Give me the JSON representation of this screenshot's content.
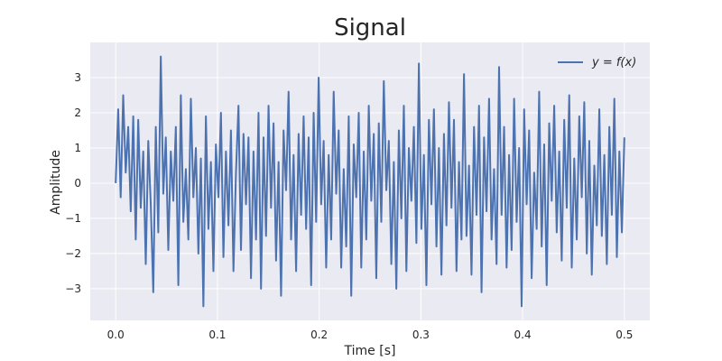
{
  "chart_data": {
    "type": "line",
    "title": "Signal",
    "xlabel": "Time [s]",
    "ylabel": "Amplitude",
    "xlim": [
      -0.025,
      0.525
    ],
    "ylim": [
      -3.9,
      4.0
    ],
    "x_ticks": [
      0.0,
      0.1,
      0.2,
      0.3,
      0.4,
      0.5
    ],
    "x_tick_labels": [
      "0.0",
      "0.1",
      "0.2",
      "0.3",
      "0.4",
      "0.5"
    ],
    "y_ticks": [
      -3,
      -2,
      -1,
      0,
      1,
      2,
      3
    ],
    "y_tick_labels": [
      "−3",
      "−2",
      "−1",
      "0",
      "1",
      "2",
      "3"
    ],
    "grid": true,
    "legend_position": "top-right",
    "series": [
      {
        "name": "y = f(x)",
        "color": "#4c72b0",
        "x_start": 0.0,
        "x_end": 0.5,
        "values": [
          0.0,
          2.1,
          -0.4,
          2.5,
          0.3,
          1.6,
          -0.8,
          1.9,
          -1.6,
          1.8,
          -0.7,
          0.9,
          -2.3,
          1.2,
          -0.6,
          -3.1,
          1.6,
          -1.4,
          3.6,
          -0.3,
          1.3,
          -1.9,
          0.9,
          -0.5,
          1.6,
          -2.9,
          2.5,
          -1.1,
          0.4,
          -1.6,
          2.4,
          -0.4,
          1.0,
          -2.0,
          0.7,
          -3.5,
          1.9,
          -1.3,
          0.6,
          -2.5,
          1.1,
          -0.4,
          2.0,
          -2.1,
          0.9,
          -1.2,
          1.5,
          -2.5,
          0.3,
          2.2,
          -1.9,
          1.4,
          -0.6,
          1.3,
          -2.7,
          0.9,
          -1.6,
          2.0,
          -3.0,
          1.3,
          -1.5,
          2.2,
          -0.7,
          1.7,
          -2.2,
          0.6,
          -3.2,
          1.5,
          -0.2,
          2.6,
          -1.6,
          0.8,
          -2.5,
          1.4,
          -0.9,
          1.9,
          -1.3,
          1.3,
          -2.9,
          2.0,
          -1.1,
          3.0,
          -0.6,
          1.2,
          -2.4,
          0.8,
          -1.6,
          2.6,
          -0.3,
          1.5,
          -2.4,
          0.4,
          -1.8,
          1.9,
          -3.2,
          1.1,
          -0.4,
          2.0,
          -2.4,
          0.9,
          -1.6,
          2.2,
          -0.5,
          1.4,
          -2.7,
          1.7,
          -1.1,
          2.9,
          -0.2,
          1.2,
          -2.3,
          0.6,
          -3.0,
          1.5,
          -1.0,
          2.2,
          -2.5,
          1.0,
          -0.5,
          1.6,
          -1.7,
          3.4,
          -1.3,
          0.8,
          -2.9,
          1.8,
          -0.6,
          2.1,
          -1.8,
          1.0,
          -2.6,
          1.4,
          -1.2,
          2.3,
          -0.7,
          1.8,
          -2.5,
          0.6,
          -1.6,
          3.1,
          -1.5,
          0.5,
          -2.6,
          1.6,
          -0.9,
          2.2,
          -3.1,
          1.3,
          -0.8,
          2.4,
          -1.6,
          0.4,
          -2.3,
          3.3,
          -0.9,
          1.6,
          -2.4,
          0.8,
          -1.9,
          2.4,
          -1.1,
          1.0,
          -3.5,
          2.1,
          -0.6,
          1.5,
          -2.7,
          0.3,
          -1.3,
          2.6,
          -1.8,
          1.1,
          -2.9,
          1.7,
          -0.5,
          2.2,
          -1.4,
          0.9,
          -2.2,
          1.8,
          -0.7,
          2.5,
          -2.4,
          0.7,
          -1.6,
          1.9,
          -0.4,
          2.3,
          -2.0,
          1.2,
          -2.6,
          0.5,
          -1.2,
          2.1,
          -1.5,
          0.8,
          -2.3,
          1.6,
          -0.9,
          2.4,
          -2.1,
          0.9,
          -1.4,
          1.3
        ]
      }
    ]
  }
}
